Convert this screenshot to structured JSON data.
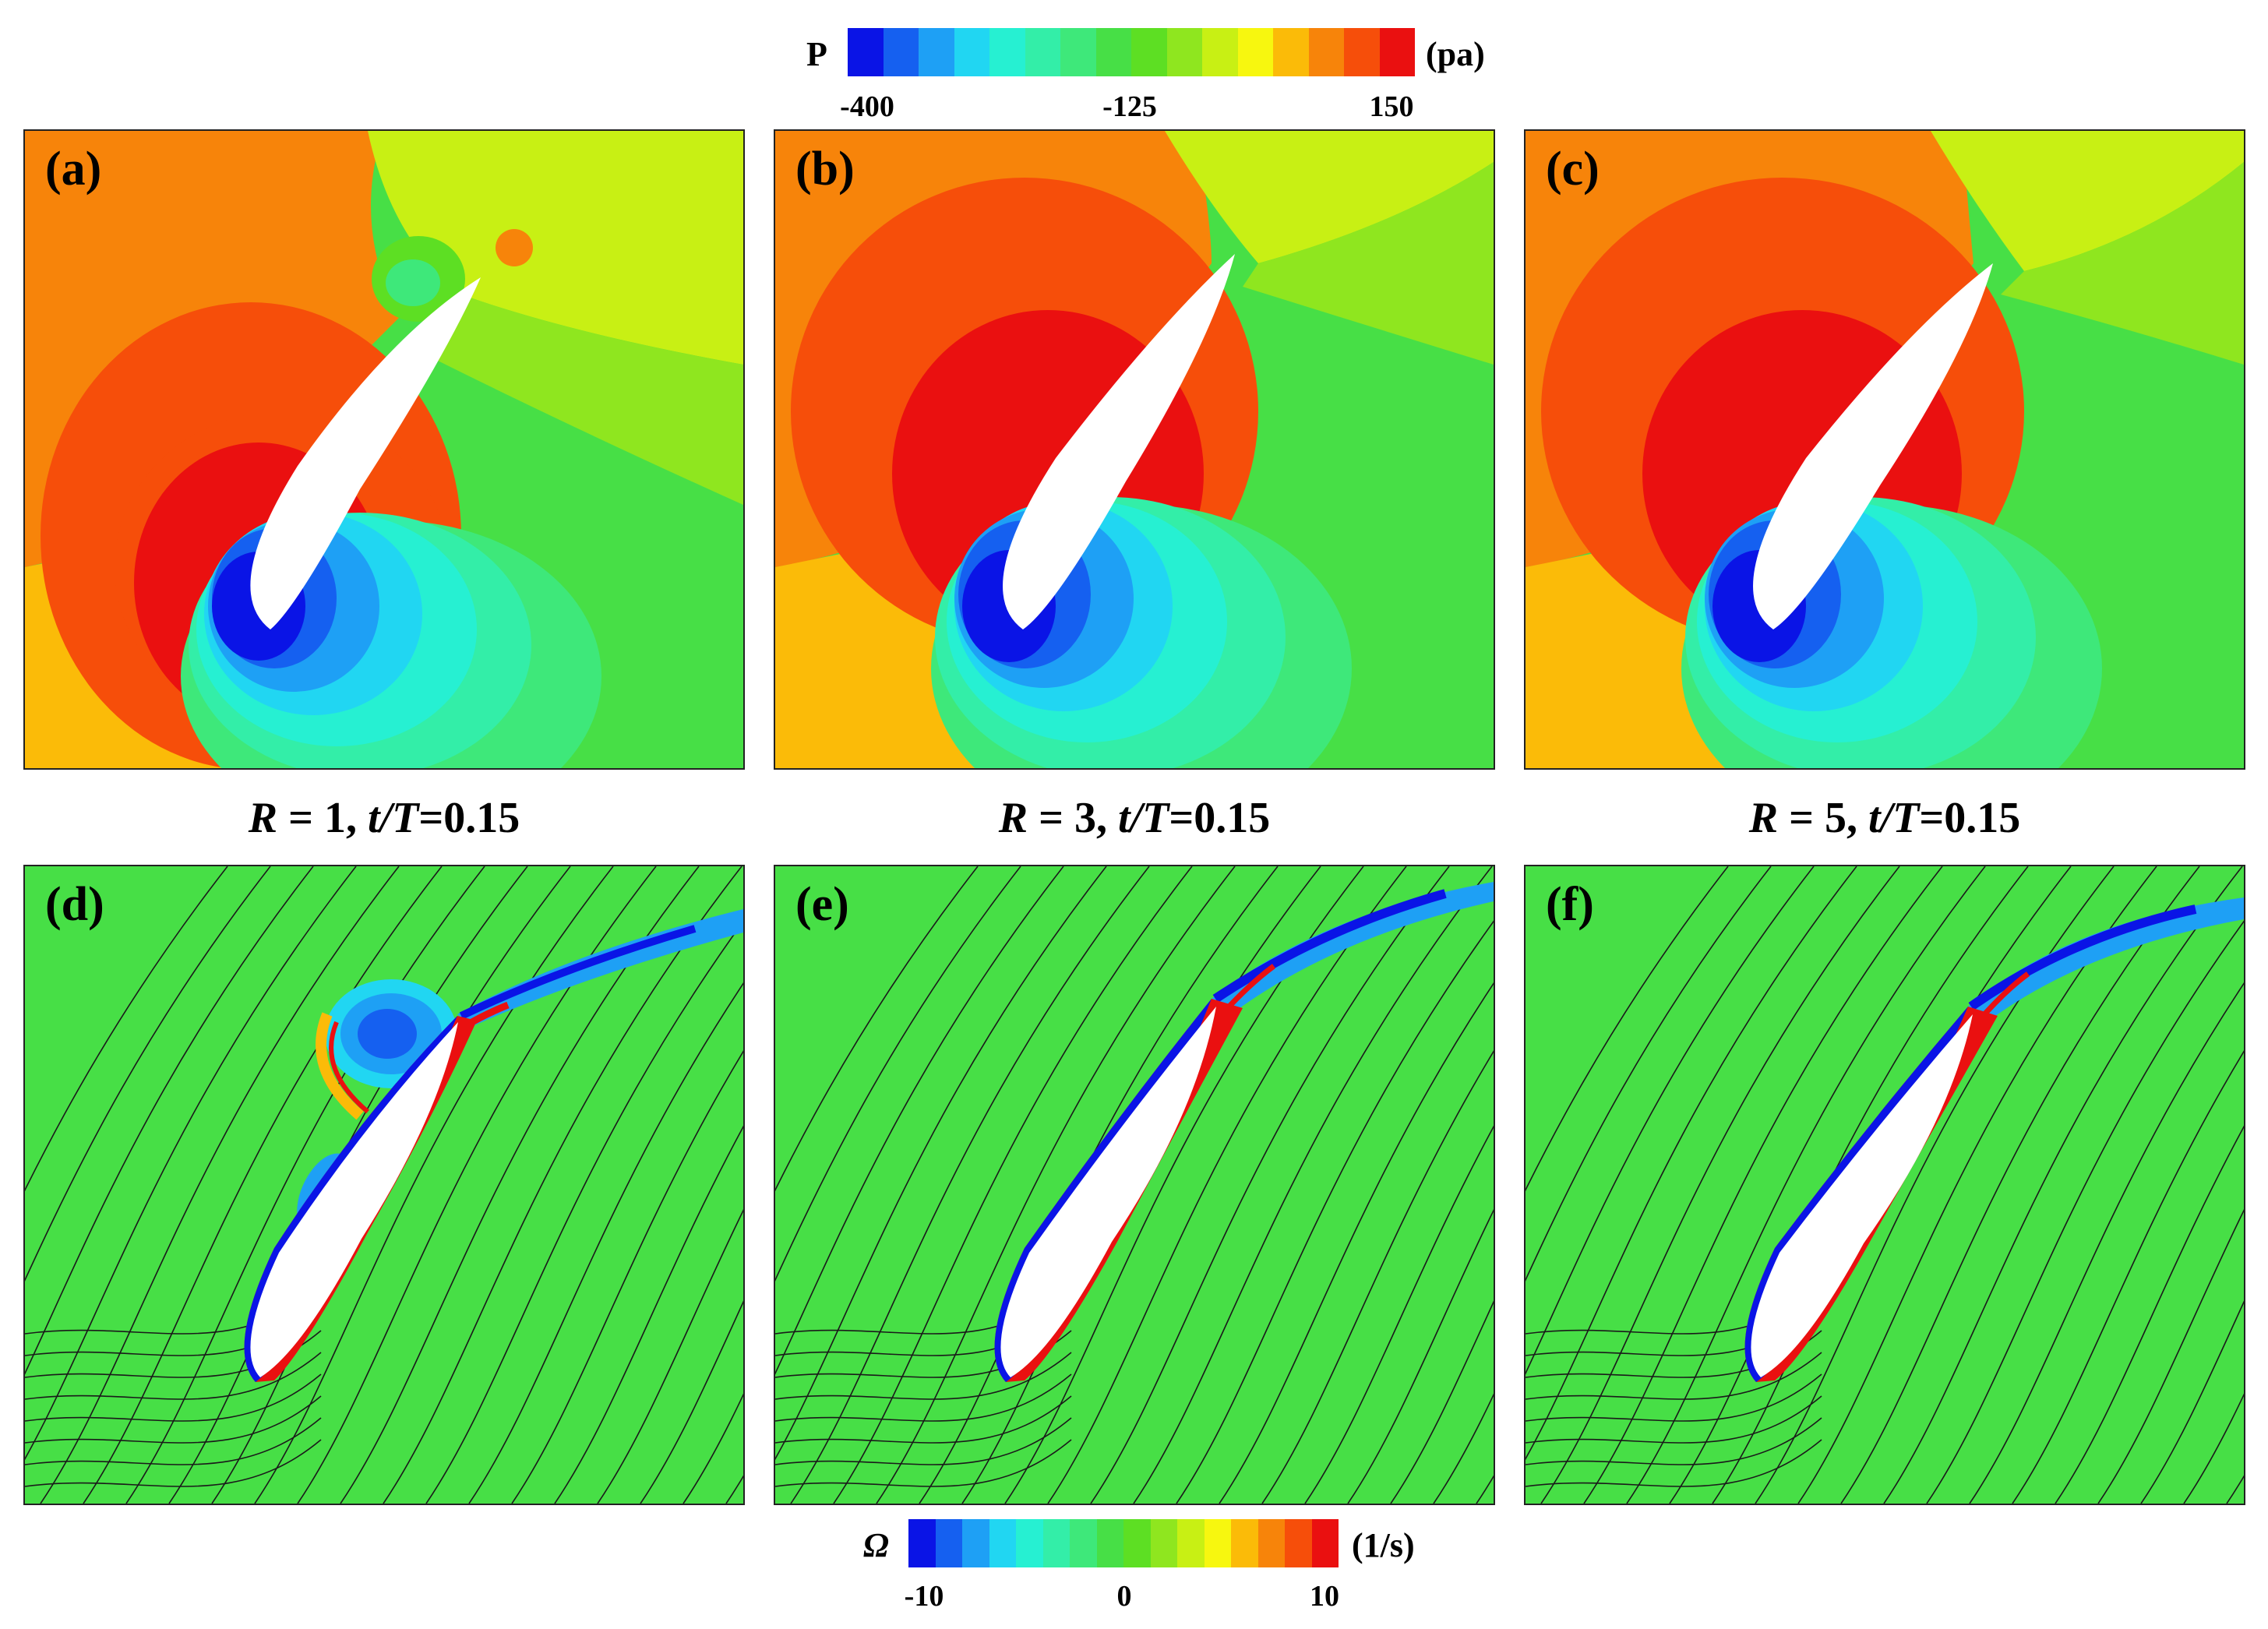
{
  "pressure_colorbar": {
    "symbol": "P",
    "unit": "(pa)",
    "ticks": [
      "-400",
      "-125",
      "150"
    ],
    "colors": [
      "#0a14e6",
      "#1560f0",
      "#1ea0f5",
      "#21d6f2",
      "#26f0d2",
      "#33eea8",
      "#3ee87a",
      "#47df46",
      "#5ddf23",
      "#8fe61f",
      "#c8f014",
      "#f7f70f",
      "#fbbb08",
      "#f7840a",
      "#f64e0a",
      "#ea1010"
    ]
  },
  "vorticity_colorbar": {
    "symbol": "Ω",
    "unit": "(1/s)",
    "ticks": [
      "-10",
      "0",
      "10"
    ],
    "colors": [
      "#0a14e6",
      "#1560f0",
      "#1ea0f5",
      "#21d6f2",
      "#26f0d2",
      "#33eea8",
      "#3ee87a",
      "#47df46",
      "#5ddf23",
      "#8fe61f",
      "#c8f014",
      "#f7f70f",
      "#fbbb08",
      "#f7840a",
      "#f64e0a",
      "#ea1010"
    ]
  },
  "panels": [
    {
      "label": "(a)"
    },
    {
      "label": "(b)"
    },
    {
      "label": "(c)"
    },
    {
      "label": "(d)"
    },
    {
      "label": "(e)"
    },
    {
      "label": "(f)"
    }
  ],
  "captions": [
    {
      "r": "R",
      "eq": " = 1, ",
      "t": "t/T",
      "val": "=0.15"
    },
    {
      "r": "R",
      "eq": " = 3, ",
      "t": "t/T",
      "val": "=0.15"
    },
    {
      "r": "R",
      "eq": " = 5, ",
      "t": "t/T",
      "val": "=0.15"
    }
  ]
}
